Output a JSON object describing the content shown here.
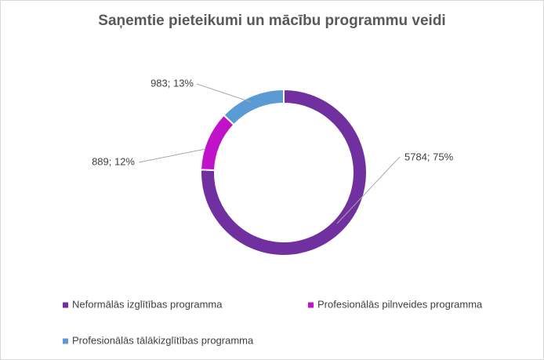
{
  "chart_data": {
    "type": "donut",
    "title": "Saņemtie pieteikumi un mācību programmu veidi",
    "categories": [
      "Neformālās izglītības programma",
      "Profesionālās pilnveides programma",
      "Profesionālās tālākizglītības programma"
    ],
    "values": [
      5784,
      889,
      983
    ],
    "value_labels": [
      "5784; 75%",
      "889; 12%",
      "983; 13%"
    ],
    "colors": [
      "#7030a0",
      "#c012c8",
      "#5b9bd5"
    ],
    "legend": "bottom"
  }
}
